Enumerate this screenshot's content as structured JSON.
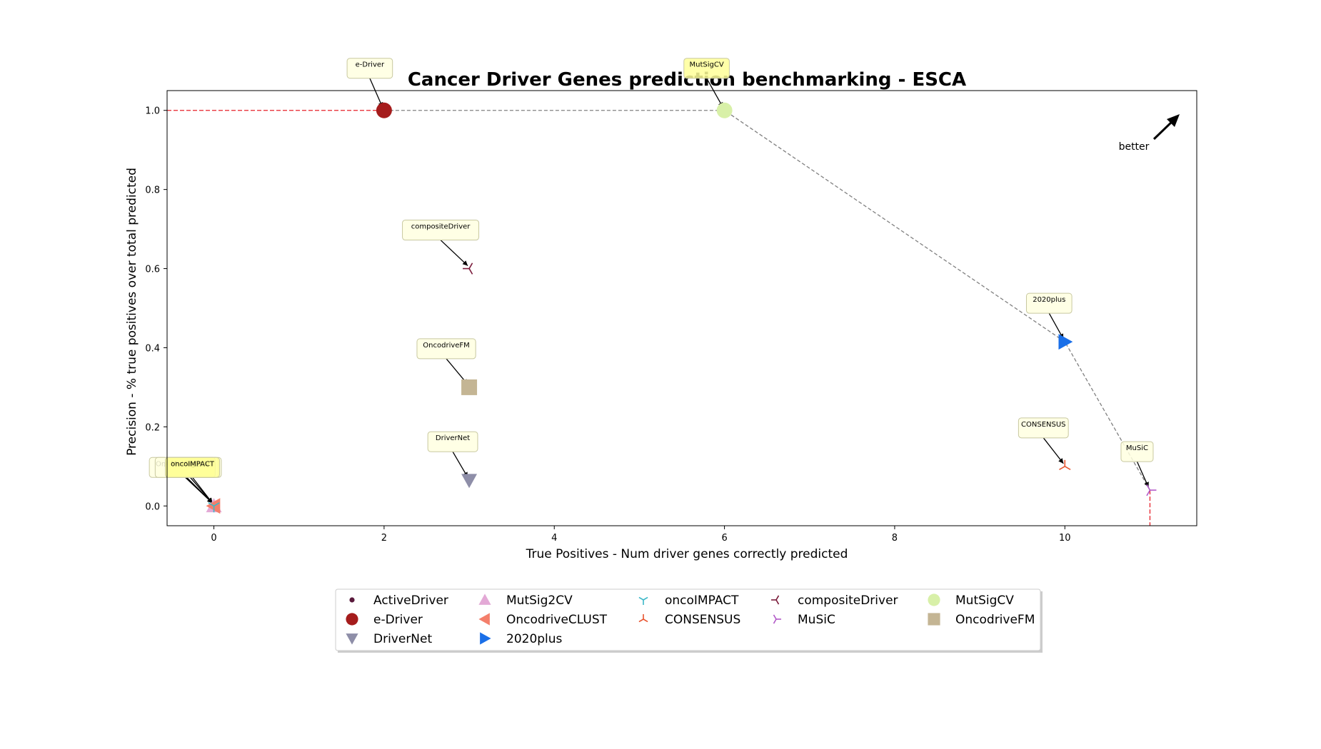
{
  "chart_data": {
    "type": "scatter",
    "title": "Cancer Driver Genes prediction benchmarking - ESCA",
    "xlabel": "True Positives - Num driver genes correctly predicted",
    "ylabel": "Precision - % true positives over total predicted",
    "xlim": [
      -0.55,
      11.55
    ],
    "ylim": [
      -0.05,
      1.05
    ],
    "xticks": [
      0,
      2,
      4,
      6,
      8,
      10
    ],
    "yticks": [
      0.0,
      0.2,
      0.4,
      0.6,
      0.8,
      1.0
    ],
    "xtick_labels": [
      "0",
      "2",
      "4",
      "6",
      "8",
      "10"
    ],
    "ytick_labels": [
      "0.0",
      "0.2",
      "0.4",
      "0.6",
      "0.8",
      "1.0"
    ],
    "grid": false,
    "legend_position": "bottom-center",
    "annotation_text": "better",
    "series": [
      {
        "name": "ActiveDriver",
        "x": 0,
        "y": 0.0,
        "marker": "dot",
        "color": "#5a1a3c"
      },
      {
        "name": "e-Driver",
        "x": 2,
        "y": 1.0,
        "marker": "circle",
        "color": "#a51c1c"
      },
      {
        "name": "DriverNet",
        "x": 3,
        "y": 0.065,
        "marker": "triangle-down",
        "color": "#8e8ea8"
      },
      {
        "name": "MutSig2CV",
        "x": 0,
        "y": 0.0,
        "marker": "triangle-up",
        "color": "#e3a9d6"
      },
      {
        "name": "OncodriveCLUST",
        "x": 0,
        "y": 0.0,
        "marker": "triangle-left",
        "color": "#f47f6b"
      },
      {
        "name": "2020plus",
        "x": 10,
        "y": 0.415,
        "marker": "triangle-right",
        "color": "#1a6fe8"
      },
      {
        "name": "oncoIMPACT",
        "x": 0,
        "y": 0.0,
        "marker": "tri-down",
        "color": "#3cb8c8"
      },
      {
        "name": "CONSENSUS",
        "x": 10,
        "y": 0.1,
        "marker": "tri-up",
        "color": "#e8542e"
      },
      {
        "name": "compositeDriver",
        "x": 3,
        "y": 0.6,
        "marker": "tri-left",
        "color": "#7a1a3a"
      },
      {
        "name": "MuSiC",
        "x": 11,
        "y": 0.04,
        "marker": "tri-right",
        "color": "#b25ac8"
      },
      {
        "name": "MutSigCV",
        "x": 6,
        "y": 1.0,
        "marker": "circle",
        "color": "#d8f0a8"
      },
      {
        "name": "OncodriveFM",
        "x": 3,
        "y": 0.3,
        "marker": "square",
        "color": "#c4b594"
      }
    ],
    "pareto_frontier": [
      [
        2,
        1.0
      ],
      [
        6,
        1.0
      ],
      [
        10,
        0.415
      ],
      [
        11,
        0.04
      ]
    ]
  },
  "legend_columns": [
    [
      "ActiveDriver",
      "e-Driver",
      "DriverNet"
    ],
    [
      "MutSig2CV",
      "OncodriveCLUST",
      "2020plus"
    ],
    [
      "oncoIMPACT",
      "CONSENSUS"
    ],
    [
      "compositeDriver",
      "MuSiC"
    ],
    [
      "MutSigCV",
      "OncodriveFM"
    ]
  ],
  "colors": {
    "frontier_line": "#808080",
    "reference_line": "#e8202a",
    "annotation_box": "#ffffe0",
    "annotation_box_highlight": "#ffff99"
  }
}
